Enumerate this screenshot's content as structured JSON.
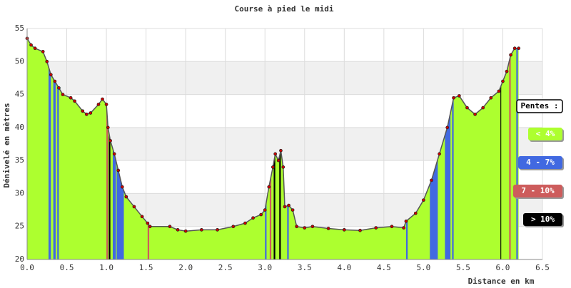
{
  "chart_data": {
    "type": "area",
    "title": "Course à pied le midi",
    "xlabel": "Distance en km",
    "ylabel": "Dénivelé en mètres",
    "x": [
      0,
      0.05,
      0.1,
      0.2,
      0.25,
      0.3,
      0.35,
      0.4,
      0.45,
      0.55,
      0.6,
      0.7,
      0.75,
      0.8,
      0.9,
      0.95,
      1.0,
      1.02,
      1.05,
      1.1,
      1.15,
      1.2,
      1.25,
      1.35,
      1.45,
      1.52,
      1.55,
      1.8,
      1.9,
      2.0,
      2.2,
      2.4,
      2.6,
      2.75,
      2.85,
      2.95,
      3.0,
      3.05,
      3.1,
      3.13,
      3.17,
      3.2,
      3.23,
      3.25,
      3.3,
      3.35,
      3.4,
      3.5,
      3.6,
      3.8,
      4.0,
      4.2,
      4.4,
      4.6,
      4.75,
      4.78,
      4.9,
      5.0,
      5.1,
      5.2,
      5.3,
      5.38,
      5.45,
      5.55,
      5.65,
      5.75,
      5.85,
      5.95,
      6.0,
      6.05,
      6.1,
      6.15,
      6.2
    ],
    "values": [
      53.5,
      52.5,
      52,
      51.5,
      50,
      48,
      47,
      46,
      45,
      44.5,
      44,
      42.5,
      42,
      42.2,
      43.5,
      44.3,
      43.5,
      40,
      38,
      36,
      33.5,
      31,
      29.5,
      28,
      26.5,
      25.5,
      25,
      25,
      24.5,
      24.3,
      24.5,
      24.5,
      25,
      25.5,
      26.3,
      26.8,
      27.5,
      31,
      34,
      36,
      35,
      36.5,
      34,
      28,
      28.2,
      27.5,
      25,
      24.8,
      25,
      24.7,
      24.5,
      24.4,
      24.8,
      25,
      24.8,
      25.8,
      27,
      29,
      32,
      36,
      40,
      44.5,
      44.8,
      43,
      42,
      43,
      44.5,
      45.5,
      47,
      48.5,
      51,
      52,
      52
    ],
    "color": "#adff2f",
    "line_color": "#555555",
    "marker_color": "#cc0000",
    "stripes": [
      {
        "x0": 0.27,
        "x1": 0.3,
        "color": "#4169e1"
      },
      {
        "x0": 0.33,
        "x1": 0.36,
        "color": "#4169e1"
      },
      {
        "x0": 0.38,
        "x1": 0.4,
        "color": "#4169e1"
      },
      {
        "x0": 1.0,
        "x1": 1.02,
        "color": "#cd5c5c"
      },
      {
        "x0": 1.03,
        "x1": 1.05,
        "color": "#000000"
      },
      {
        "x0": 1.08,
        "x1": 1.12,
        "color": "#4169e1"
      },
      {
        "x0": 1.13,
        "x1": 1.22,
        "color": "#4169e1"
      },
      {
        "x0": 1.52,
        "x1": 1.54,
        "color": "#cd5c5c"
      },
      {
        "x0": 3.0,
        "x1": 3.02,
        "color": "#4169e1"
      },
      {
        "x0": 3.06,
        "x1": 3.08,
        "color": "#cd5c5c"
      },
      {
        "x0": 3.11,
        "x1": 3.13,
        "color": "#000000"
      },
      {
        "x0": 3.18,
        "x1": 3.2,
        "color": "#000000"
      },
      {
        "x0": 3.28,
        "x1": 3.3,
        "color": "#4169e1"
      },
      {
        "x0": 4.78,
        "x1": 4.8,
        "color": "#4169e1"
      },
      {
        "x0": 5.08,
        "x1": 5.18,
        "color": "#4169e1"
      },
      {
        "x0": 5.27,
        "x1": 5.34,
        "color": "#4169e1"
      },
      {
        "x0": 5.36,
        "x1": 5.38,
        "color": "#4169e1"
      },
      {
        "x0": 5.97,
        "x1": 5.98,
        "color": "#000000"
      },
      {
        "x0": 6.08,
        "x1": 6.1,
        "color": "#cd5c5c"
      },
      {
        "x0": 6.17,
        "x1": 6.19,
        "color": "#4169e1"
      }
    ],
    "legend_title": "Pentes :",
    "legend": [
      {
        "label": "< 4%",
        "color": "#adff2f"
      },
      {
        "label": "4 - 7%",
        "color": "#4169e1"
      },
      {
        "label": "7 - 10%",
        "color": "#cd5c5c"
      },
      {
        "label": "> 10%",
        "color": "#000000"
      }
    ],
    "xlim": [
      0,
      6.5
    ],
    "ylim": [
      20,
      55
    ],
    "xticks": [
      {
        "value": 0,
        "label": "0.0"
      },
      0.5,
      {
        "value": 1,
        "label": "1.0"
      },
      1.5,
      {
        "value": 2,
        "label": "2.0"
      },
      2.5,
      {
        "value": 3,
        "label": "3.0"
      },
      3.5,
      {
        "value": 4,
        "label": "4.0"
      },
      4.5,
      {
        "value": 5,
        "label": "5.0"
      },
      5.5,
      {
        "value": 6,
        "label": "6.0"
      },
      6.5
    ],
    "yticks": [
      20,
      25,
      30,
      35,
      40,
      45,
      50,
      55
    ],
    "grid": true
  }
}
